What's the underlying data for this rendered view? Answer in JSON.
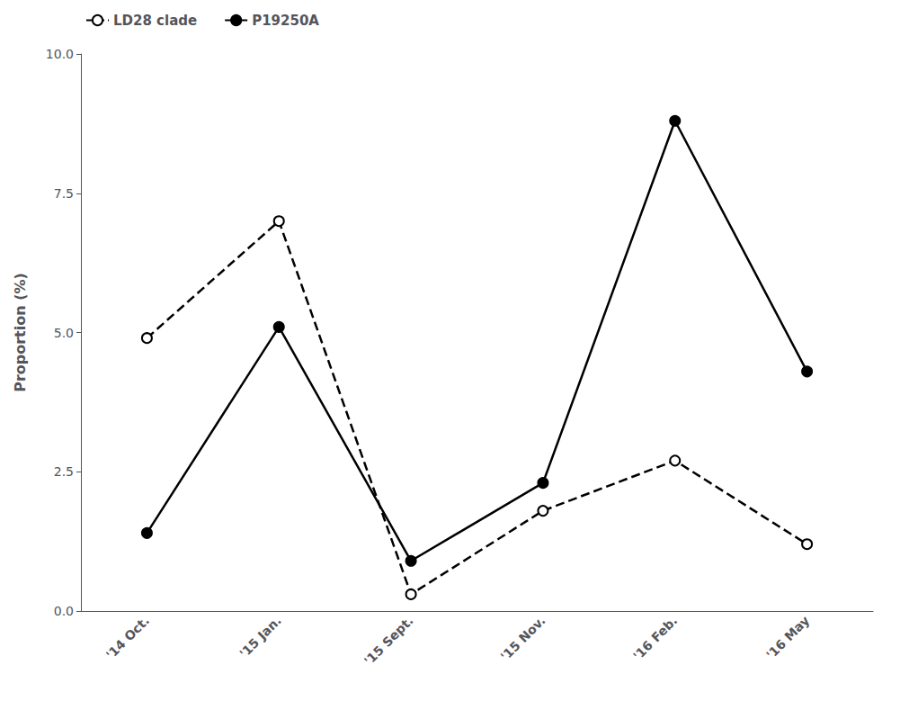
{
  "chart_data": {
    "type": "line",
    "categories": [
      "'14 Oct.",
      "'15 Jan.",
      "'15 Sept.",
      "'15 Nov.",
      "'16 Feb.",
      "'16 May"
    ],
    "series": [
      {
        "name": "LD28 clade",
        "color": "#000000",
        "line_style": "dashed",
        "marker": "open_circle",
        "values": [
          4.9,
          7.0,
          0.3,
          1.8,
          2.7,
          1.2
        ]
      },
      {
        "name": "P19250A",
        "color": "#000000",
        "line_style": "solid",
        "marker": "filled_circle",
        "values": [
          1.4,
          5.1,
          0.9,
          2.3,
          8.8,
          4.3
        ]
      }
    ],
    "ylabel": "Proportion (%)",
    "ylim": [
      0.0,
      10.0
    ],
    "yticks": [
      {
        "value": 0,
        "label": "0.0"
      },
      2.5,
      {
        "value": 5,
        "label": "5.0"
      },
      7.5,
      {
        "value": 10,
        "label": "10.0"
      }
    ],
    "grid": false,
    "legend": "upper left"
  }
}
